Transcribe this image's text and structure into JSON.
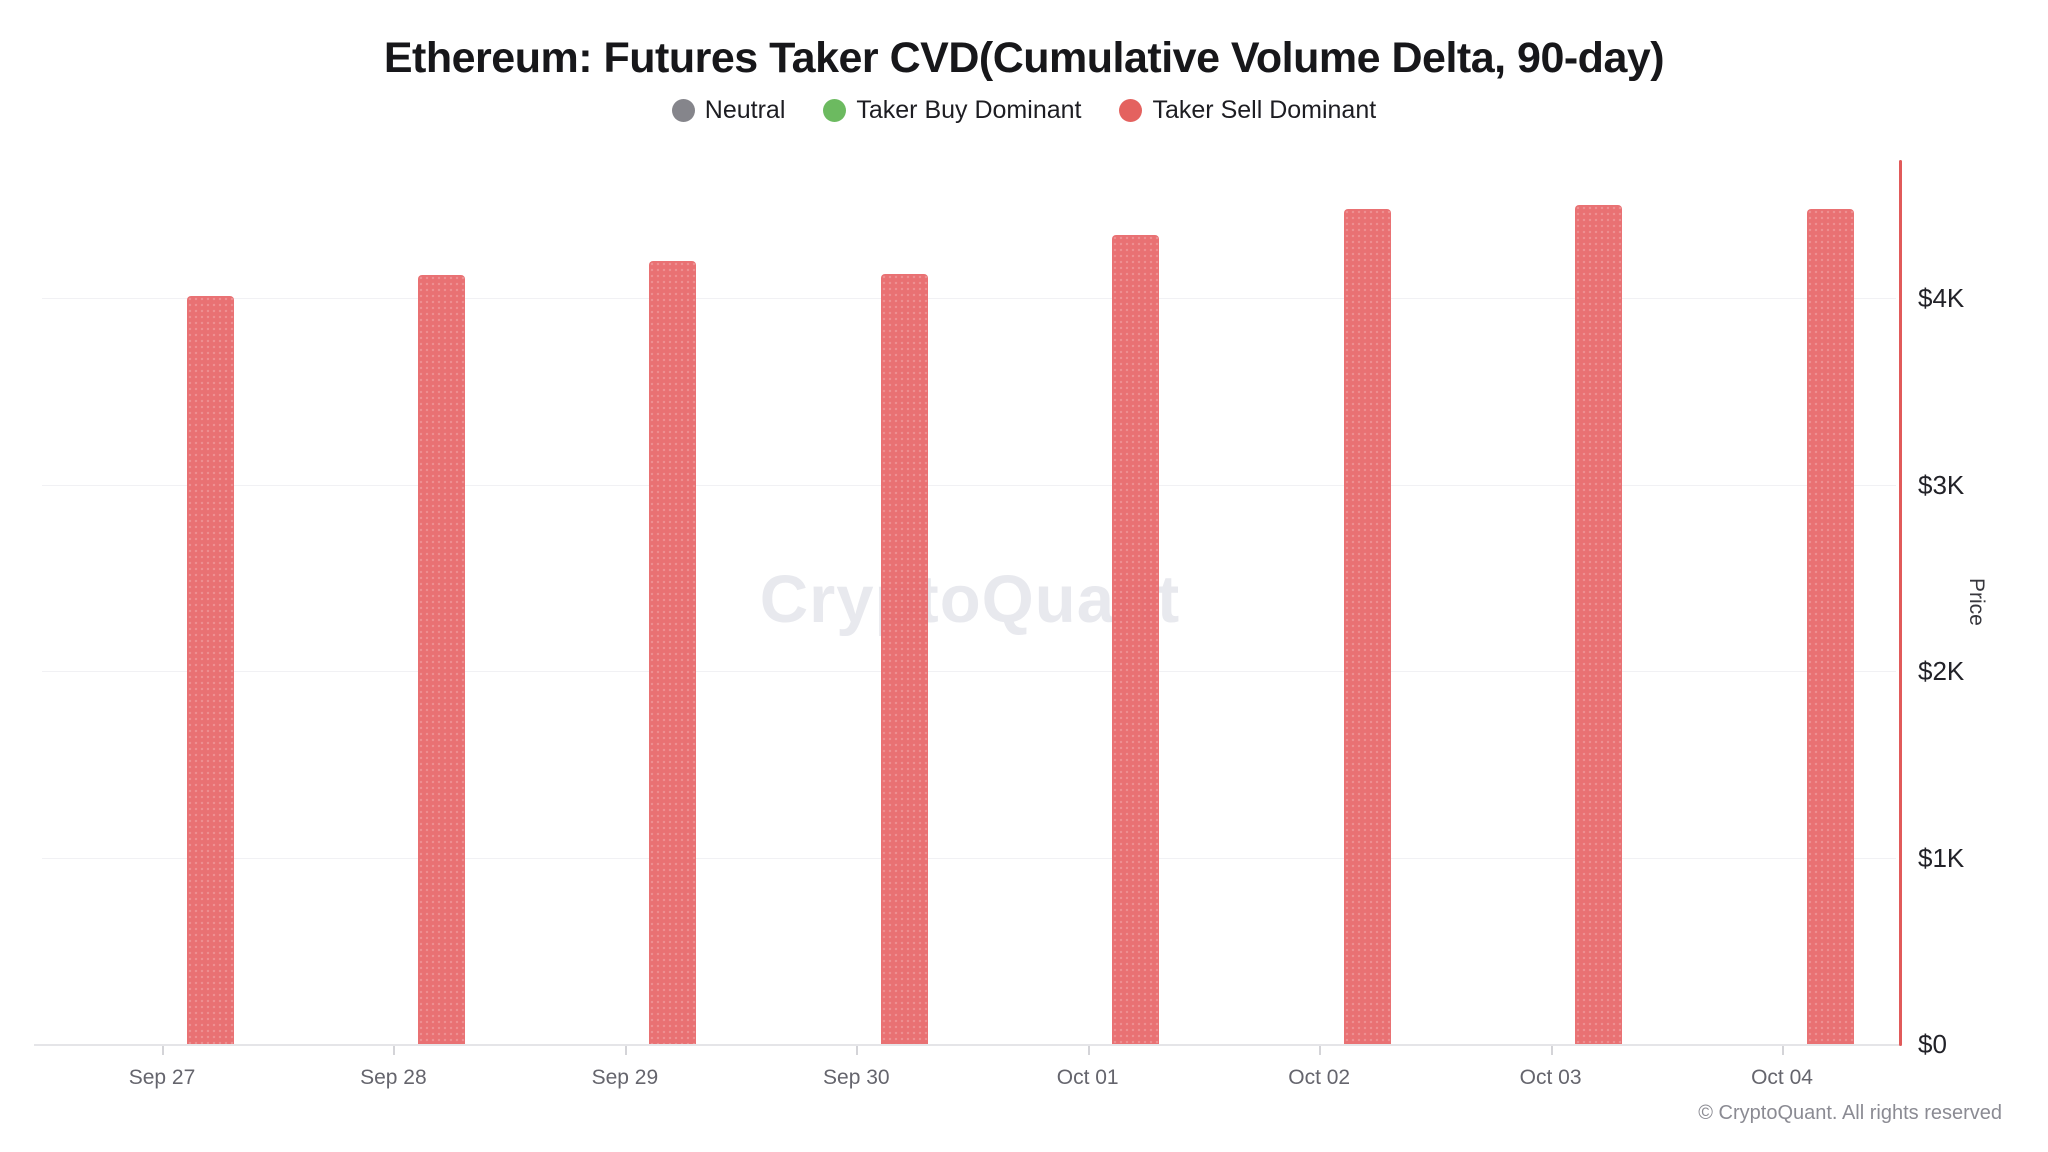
{
  "header": {
    "title": "Ethereum: Futures Taker CVD(Cumulative Volume Delta, 90-day)"
  },
  "legend": {
    "items": [
      {
        "id": "neutral",
        "label": "Neutral",
        "color": "#85858b"
      },
      {
        "id": "taker-buy-dominant",
        "label": "Taker Buy Dominant",
        "color": "#6cba60"
      },
      {
        "id": "taker-sell-dominant",
        "label": "Taker Sell Dominant",
        "color": "#e4625f"
      }
    ]
  },
  "watermark": {
    "text": "CryptoQuant"
  },
  "footer": {
    "text": "© CryptoQuant. All rights reserved"
  },
  "chart_data": {
    "type": "bar",
    "title": "Ethereum: Futures Taker CVD(Cumulative Volume Delta, 90-day)",
    "categories": [
      "Sep 27",
      "Sep 28",
      "Sep 29",
      "Sep 30",
      "Oct 01",
      "Oct 02",
      "Oct 03",
      "Oct 04"
    ],
    "series": [
      {
        "name": "Taker Sell Dominant",
        "color": "#e8696b",
        "values": [
          4010,
          4125,
          4200,
          4130,
          4340,
          4475,
          4500,
          4475
        ]
      }
    ],
    "xlabel": "",
    "ylabel": "Price",
    "ylim": [
      0,
      4740
    ],
    "y_ticks": [
      {
        "label": "$0",
        "value": 0
      },
      {
        "label": "$1K",
        "value": 1000
      },
      {
        "label": "$2K",
        "value": 2000
      },
      {
        "label": "$3K",
        "value": 3000
      },
      {
        "label": "$4K",
        "value": 4000
      }
    ],
    "grid": true,
    "legend_position": "top",
    "bar_category_status": "all bars colored as Taker Sell Dominant"
  }
}
